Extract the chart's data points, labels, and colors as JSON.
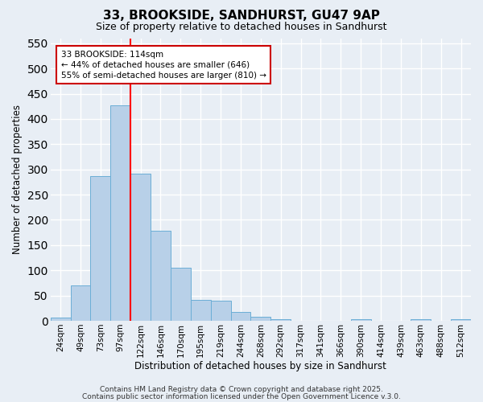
{
  "title": "33, BROOKSIDE, SANDHURST, GU47 9AP",
  "subtitle": "Size of property relative to detached houses in Sandhurst",
  "xlabel": "Distribution of detached houses by size in Sandhurst",
  "ylabel": "Number of detached properties",
  "bar_labels": [
    "24sqm",
    "49sqm",
    "73sqm",
    "97sqm",
    "122sqm",
    "146sqm",
    "170sqm",
    "195sqm",
    "219sqm",
    "244sqm",
    "268sqm",
    "292sqm",
    "317sqm",
    "341sqm",
    "366sqm",
    "390sqm",
    "414sqm",
    "439sqm",
    "463sqm",
    "488sqm",
    "512sqm"
  ],
  "bar_values": [
    7,
    70,
    287,
    427,
    291,
    178,
    105,
    42,
    40,
    18,
    8,
    4,
    0,
    0,
    0,
    3,
    0,
    0,
    4,
    0,
    4
  ],
  "bar_color": "#b8d0e8",
  "bar_edgecolor": "#6baed6",
  "background_color": "#e8eef5",
  "grid_color": "#ffffff",
  "red_line_x": 3.5,
  "annotation_text": "33 BROOKSIDE: 114sqm\n← 44% of detached houses are smaller (646)\n55% of semi-detached houses are larger (810) →",
  "annotation_box_color": "#ffffff",
  "annotation_box_edgecolor": "#cc0000",
  "ylim": [
    0,
    560
  ],
  "yticks": [
    0,
    50,
    100,
    150,
    200,
    250,
    300,
    350,
    400,
    450,
    500,
    550
  ],
  "footer1": "Contains HM Land Registry data © Crown copyright and database right 2025.",
  "footer2": "Contains public sector information licensed under the Open Government Licence v.3.0."
}
